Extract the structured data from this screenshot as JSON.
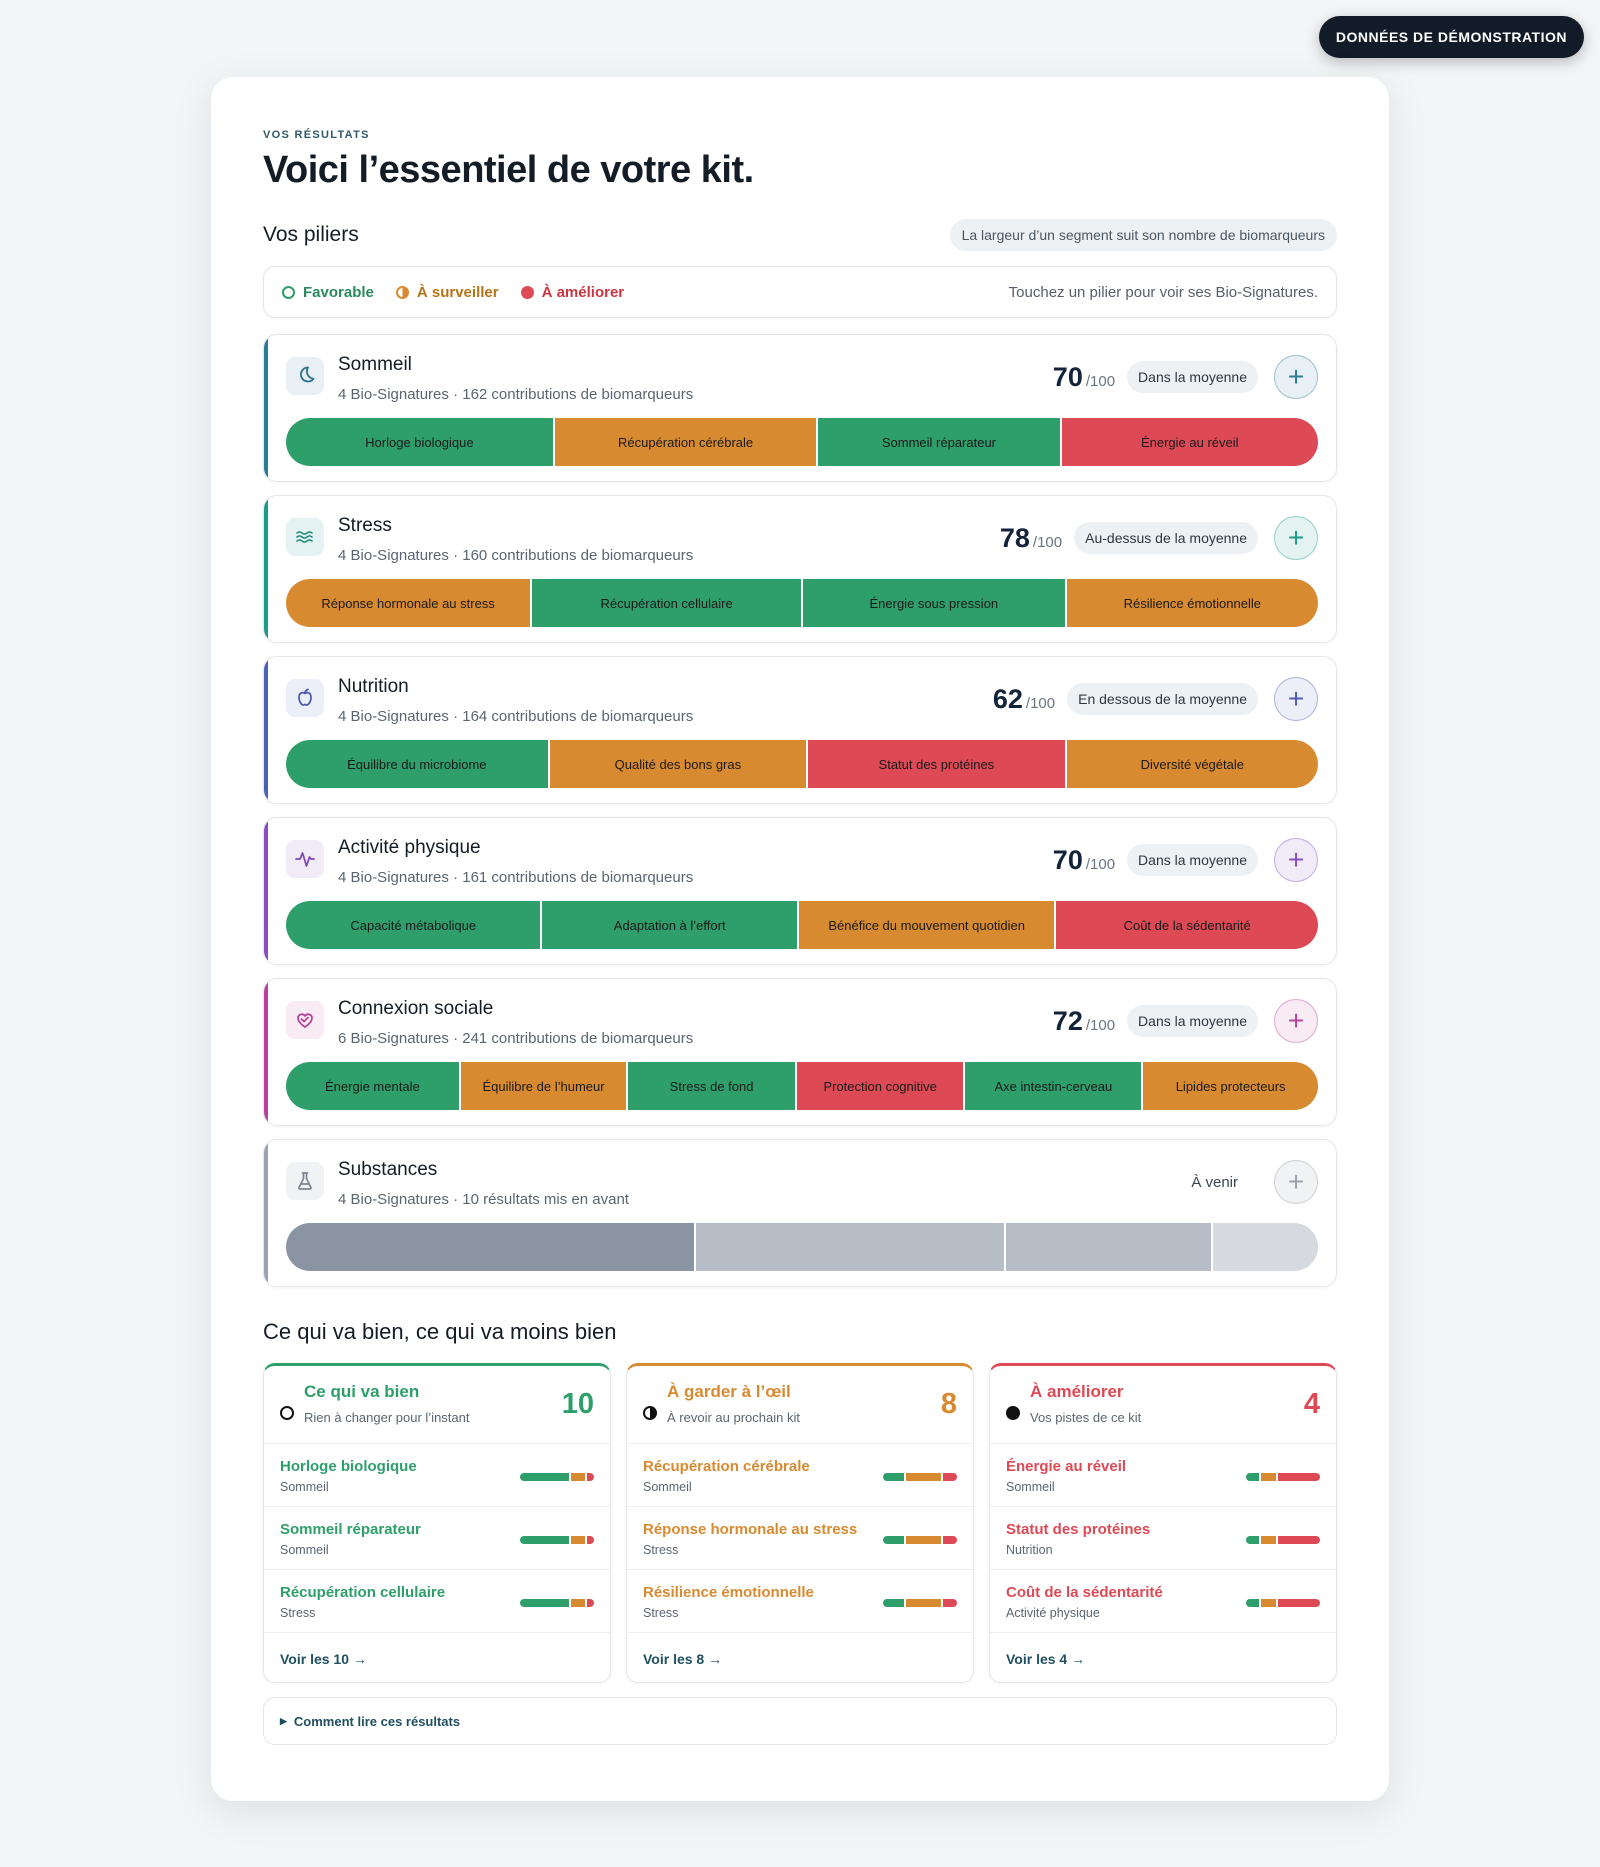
{
  "demo_badge": "DONNÉES DE DÉMONSTRATION",
  "eyebrow": "VOS RÉSULTATS",
  "title": "Voici l’essentiel de votre kit.",
  "pillars_section": {
    "title": "Vos piliers",
    "hint": "La largeur d’un segment suit son nombre de biomarqueurs"
  },
  "legend": {
    "favorable": "Favorable",
    "watch": "À surveiller",
    "improve": "À améliorer",
    "hint": "Touchez un pilier pour voir ses Bio-Signatures."
  },
  "colors": {
    "green": "#2e9e6b",
    "orange": "#d88a30",
    "red": "#dd4a55",
    "grey_dark": "#8a94a2",
    "grey_mid": "#b6bdc6",
    "grey_light": "#d6dadf"
  },
  "pillars": [
    {
      "name": "Sommeil",
      "icon": "moon-icon",
      "accent": "#2a7d95",
      "icon_bg": "#e8f0f5",
      "icon_color": "#2a6f8a",
      "sub": "4 Bio-Signatures · 162 contributions de biomarqueurs",
      "score": "70",
      "den": "/100",
      "status": "Dans la moyenne",
      "status_kind": "pill",
      "segments": [
        {
          "label": "Horloge biologique",
          "status": "green",
          "weight": 26
        },
        {
          "label": "Récupération cérébrale",
          "status": "orange",
          "weight": 25.5
        },
        {
          "label": "Sommeil réparateur",
          "status": "green",
          "weight": 23.5
        },
        {
          "label": "Énergie au réveil",
          "status": "red",
          "weight": 25
        }
      ]
    },
    {
      "name": "Stress",
      "icon": "waves-icon",
      "accent": "#1c9a8a",
      "icon_bg": "#e4f3f1",
      "icon_color": "#1c8a7c",
      "sub": "4 Bio-Signatures · 160 contributions de biomarqueurs",
      "score": "78",
      "den": "/100",
      "status": "Au-dessus de la moyenne",
      "status_kind": "pill",
      "segments": [
        {
          "label": "Réponse hormonale au stress",
          "status": "orange",
          "weight": 23.8
        },
        {
          "label": "Récupération cellulaire",
          "status": "green",
          "weight": 26.2
        },
        {
          "label": "Énergie sous pression",
          "status": "green",
          "weight": 25.5
        },
        {
          "label": "Résilience émotionnelle",
          "status": "orange",
          "weight": 24.5
        }
      ]
    },
    {
      "name": "Nutrition",
      "icon": "apple-icon",
      "accent": "#4a5fb5",
      "icon_bg": "#eceff8",
      "icon_color": "#4659ad",
      "sub": "4 Bio-Signatures · 164 contributions de biomarqueurs",
      "score": "62",
      "den": "/100",
      "status": "En dessous de la moyenne",
      "status_kind": "pill",
      "segments": [
        {
          "label": "Équilibre du microbiome",
          "status": "green",
          "weight": 25.5
        },
        {
          "label": "Qualité des bons gras",
          "status": "orange",
          "weight": 25
        },
        {
          "label": "Statut des protéines",
          "status": "red",
          "weight": 25
        },
        {
          "label": "Diversité végétale",
          "status": "orange",
          "weight": 24.5
        }
      ]
    },
    {
      "name": "Activité physique",
      "icon": "pulse-icon",
      "accent": "#8a4cc0",
      "icon_bg": "#f1ebf8",
      "icon_color": "#7d45b3",
      "sub": "4 Bio-Signatures · 161 contributions de biomarqueurs",
      "score": "70",
      "den": "/100",
      "status": "Dans la moyenne",
      "status_kind": "pill",
      "segments": [
        {
          "label": "Capacité métabolique",
          "status": "green",
          "weight": 24.8
        },
        {
          "label": "Adaptation à l’effort",
          "status": "green",
          "weight": 24.8
        },
        {
          "label": "Bénéfice du mouvement quotidien",
          "status": "orange",
          "weight": 24.9
        },
        {
          "label": "Coût de la sédentarité",
          "status": "red",
          "weight": 25.5
        }
      ]
    },
    {
      "name": "Connexion sociale",
      "icon": "heart-hand-icon",
      "accent": "#b6449e",
      "icon_bg": "#f8ebf4",
      "icon_color": "#b13f96",
      "sub": "6 Bio-Signatures · 241 contributions de biomarqueurs",
      "score": "72",
      "den": "/100",
      "status": "Dans la moyenne",
      "status_kind": "pill",
      "segments": [
        {
          "label": "Énergie mentale",
          "status": "green",
          "weight": 16.9
        },
        {
          "label": "Équilibre de l’humeur",
          "status": "orange",
          "weight": 16.2
        },
        {
          "label": "Stress de fond",
          "status": "green",
          "weight": 16.3
        },
        {
          "label": "Protection cognitive",
          "status": "red",
          "weight": 16.3
        },
        {
          "label": "Axe intestin-cerveau",
          "status": "green",
          "weight": 17.2
        },
        {
          "label": "Lipides protecteurs",
          "status": "orange",
          "weight": 17.1
        }
      ]
    },
    {
      "name": "Substances",
      "icon": "flask-icon",
      "accent": "#9aa3ad",
      "icon_bg": "#f1f2f4",
      "icon_color": "#7c8590",
      "sub": "4 Bio-Signatures · 10 résultats mis en avant",
      "score": "",
      "den": "",
      "status": "À venir",
      "status_kind": "plain",
      "segments": [
        {
          "label": "",
          "status": "grey_dark",
          "weight": 39.8
        },
        {
          "label": "",
          "status": "grey_mid",
          "weight": 30
        },
        {
          "label": "",
          "status": "grey_mid",
          "weight": 20
        },
        {
          "label": "",
          "status": "grey_light",
          "weight": 10.2
        }
      ]
    }
  ],
  "summary_section": {
    "title": "Ce qui va bien, ce qui va moins bien"
  },
  "summary_columns": [
    {
      "title": "Ce qui va bien",
      "subtitle": "Rien à changer pour l’instant",
      "count": "10",
      "color": "#2e9e6b",
      "icon": "empty-circle-icon",
      "see_all": "Voir les 10 →",
      "mini": [
        [
          70,
          "green"
        ],
        [
          20,
          "orange"
        ],
        [
          10,
          "red"
        ]
      ],
      "items": [
        {
          "name": "Horloge biologique",
          "pillar": "Sommeil"
        },
        {
          "name": "Sommeil réparateur",
          "pillar": "Sommeil"
        },
        {
          "name": "Récupération cellulaire",
          "pillar": "Stress"
        }
      ]
    },
    {
      "title": "À garder à l’œil",
      "subtitle": "À revoir au prochain kit",
      "count": "8",
      "color": "#d88a30",
      "icon": "half-circle-icon",
      "see_all": "Voir les 8 →",
      "mini": [
        [
          30,
          "green"
        ],
        [
          50,
          "orange"
        ],
        [
          20,
          "red"
        ]
      ],
      "items": [
        {
          "name": "Récupération cérébrale",
          "pillar": "Sommeil"
        },
        {
          "name": "Réponse hormonale au stress",
          "pillar": "Stress"
        },
        {
          "name": "Résilience émotionnelle",
          "pillar": "Stress"
        }
      ]
    },
    {
      "title": "À améliorer",
      "subtitle": "Vos pistes de ce kit",
      "count": "4",
      "color": "#dd4a55",
      "icon": "filled-circle-icon",
      "see_all": "Voir les 4 →",
      "mini": [
        [
          18,
          "green"
        ],
        [
          22,
          "orange"
        ],
        [
          60,
          "red"
        ]
      ],
      "items": [
        {
          "name": "Énergie au réveil",
          "pillar": "Sommeil"
        },
        {
          "name": "Statut des protéines",
          "pillar": "Nutrition"
        },
        {
          "name": "Coût de la sédentarité",
          "pillar": "Activité physique"
        }
      ]
    }
  ],
  "explain": "Comment lire ces résultats"
}
